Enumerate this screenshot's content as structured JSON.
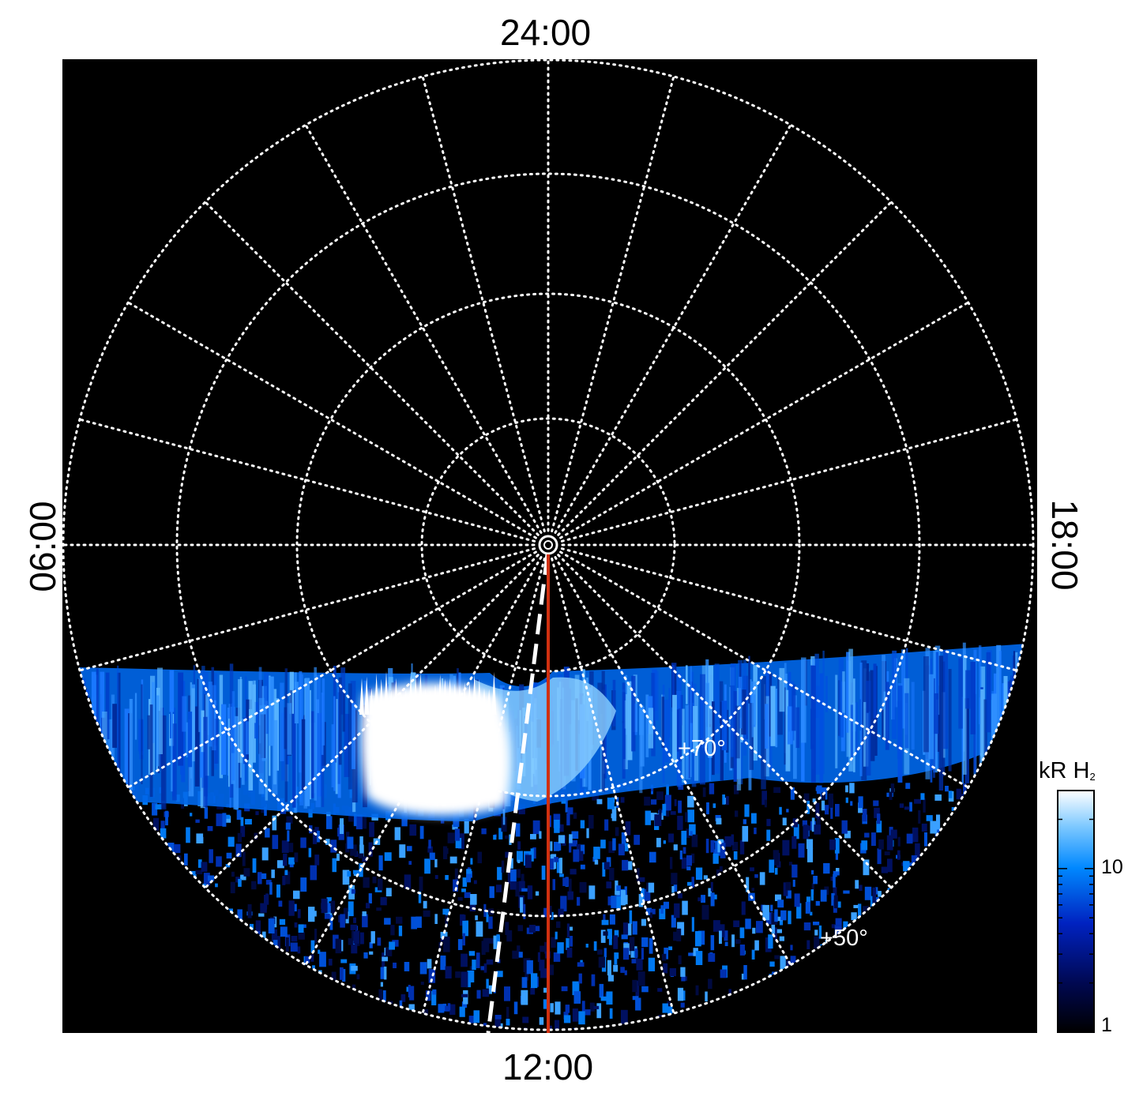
{
  "local_time_labels": {
    "top": "24:00",
    "bottom": "12:00",
    "left": "06:00",
    "right": "18:00"
  },
  "latitude_labels": {
    "seventy": "+70°",
    "fifty": "+50°"
  },
  "colorbar": {
    "unit": "kR H",
    "unit_sub": "2",
    "ticks": {
      "ten": "10",
      "one": "1"
    },
    "min": 1,
    "max": 30,
    "scale": "log",
    "colors": [
      "#000000",
      "#000850",
      "#0022c0",
      "#0088ff",
      "#7cc8ff",
      "#ffffff"
    ]
  },
  "colors": {
    "background": "#000000",
    "grid": "#ffffff",
    "meridian_line": "#d03010",
    "dashed_line": "#ffffff"
  }
}
